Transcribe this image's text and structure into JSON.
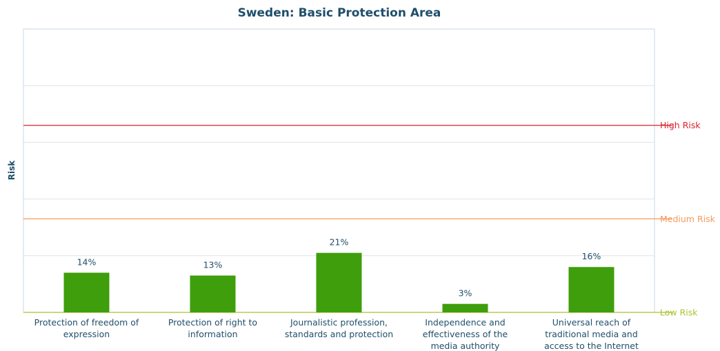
{
  "chart_data": {
    "type": "bar",
    "title": "Sweden: Basic Protection Area",
    "xlabel": "",
    "ylabel": "Risk",
    "ylim": [
      0,
      100
    ],
    "grid": true,
    "categories": [
      [
        "Protection of freedom of",
        "expression"
      ],
      [
        "Protection of right to",
        "information"
      ],
      [
        "Journalistic profession,",
        "standards and protection"
      ],
      [
        "Independence and",
        "effectiveness of the",
        "media authority"
      ],
      [
        "Universal reach of",
        "traditional media and",
        "access to the Internet"
      ]
    ],
    "values": [
      14,
      13,
      21,
      3,
      16
    ],
    "data_labels": [
      "14%",
      "13%",
      "21%",
      "3%",
      "16%"
    ],
    "thresholds": [
      {
        "label": "High Risk",
        "value": 66,
        "color": "#d9232a"
      },
      {
        "label": "Medium Risk",
        "value": 33,
        "color": "#f39a5a"
      },
      {
        "label": "Low Risk",
        "value": 0,
        "color": "#a9c22c"
      }
    ],
    "bar_color": "#3e9e0b",
    "grid_color": "#dde3ea"
  }
}
